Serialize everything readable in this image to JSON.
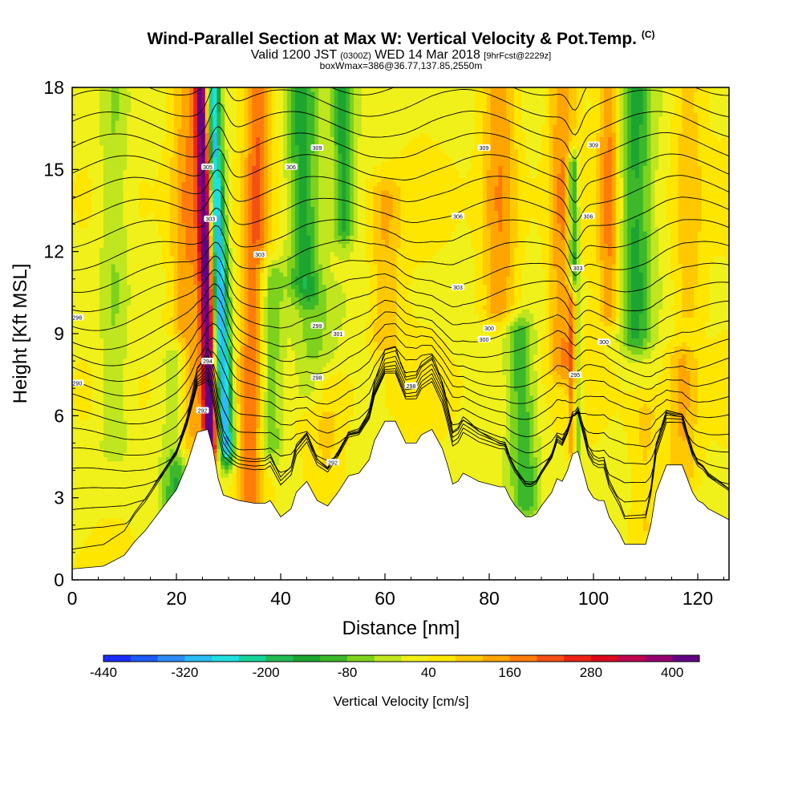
{
  "header": {
    "title": "Wind-Parallel Section at Max W: Vertical Velocity & Pot.Temp.",
    "copyright": "(C)",
    "valid_prefix": "Valid 1200 JST",
    "valid_zulu": "(0300Z)",
    "valid_date": "WED 14 Mar 2018",
    "forecast": "[9hrFcst@2229z]",
    "box_info": "boxWmax=386@36.77,137.85,2550m"
  },
  "chart_data": {
    "type": "heatmap",
    "xlabel": "Distance [nm]",
    "ylabel": "Height [Kft MSL]",
    "xlim": [
      0,
      126
    ],
    "ylim": [
      0,
      18
    ],
    "x_ticks": [
      0,
      20,
      40,
      60,
      80,
      100,
      120
    ],
    "y_ticks": [
      0,
      3,
      6,
      9,
      12,
      15,
      18
    ],
    "colorbar": {
      "label": "Vertical Velocity [cm/s]",
      "min": -440,
      "max": 440,
      "step": 40,
      "tick_labels": [
        "-440",
        "-320",
        "-200",
        "-80",
        "40",
        "160",
        "280",
        "400"
      ],
      "colors": [
        "#1a2dff",
        "#1e5af5",
        "#2d8cf5",
        "#2bbcf5",
        "#1fe0e0",
        "#18d49a",
        "#22bb55",
        "#1da531",
        "#3cb82a",
        "#7dd21e",
        "#bfe61e",
        "#f0f01a",
        "#ffe600",
        "#ffc800",
        "#ffa500",
        "#ff7c0a",
        "#f55014",
        "#ed2414",
        "#dc0a1e",
        "#be0550",
        "#96006e",
        "#640082"
      ]
    },
    "terrain": [
      [
        0,
        0.4
      ],
      [
        6,
        0.5
      ],
      [
        10,
        0.9
      ],
      [
        12,
        1.4
      ],
      [
        14,
        1.8
      ],
      [
        16,
        2.3
      ],
      [
        18,
        2.8
      ],
      [
        20,
        3.3
      ],
      [
        22,
        4.2
      ],
      [
        23,
        4.8
      ],
      [
        24,
        5.4
      ],
      [
        26,
        5.5
      ],
      [
        27,
        4.8
      ],
      [
        28,
        3.7
      ],
      [
        29,
        3.1
      ],
      [
        32,
        2.9
      ],
      [
        35,
        2.8
      ],
      [
        37,
        2.8
      ],
      [
        38,
        2.9
      ],
      [
        40,
        2.3
      ],
      [
        42,
        2.6
      ],
      [
        43,
        3.2
      ],
      [
        45,
        3.6
      ],
      [
        47,
        2.9
      ],
      [
        49,
        2.7
      ],
      [
        51,
        3.2
      ],
      [
        53,
        3.8
      ],
      [
        55,
        3.9
      ],
      [
        57,
        4.4
      ],
      [
        58,
        5.1
      ],
      [
        60,
        5.8
      ],
      [
        62,
        5.8
      ],
      [
        63,
        5.4
      ],
      [
        64,
        5.0
      ],
      [
        66,
        5.0
      ],
      [
        67,
        5.3
      ],
      [
        69,
        5.5
      ],
      [
        71,
        4.8
      ],
      [
        72,
        4.2
      ],
      [
        73,
        3.5
      ],
      [
        74,
        3.6
      ],
      [
        75,
        3.9
      ],
      [
        77,
        3.7
      ],
      [
        78,
        3.6
      ],
      [
        80,
        3.5
      ],
      [
        82,
        3.4
      ],
      [
        83,
        3.4
      ],
      [
        84,
        3.0
      ],
      [
        85,
        2.7
      ],
      [
        86,
        2.5
      ],
      [
        87,
        2.3
      ],
      [
        88,
        2.3
      ],
      [
        89,
        2.4
      ],
      [
        90,
        2.7
      ],
      [
        92,
        3.2
      ],
      [
        93,
        3.7
      ],
      [
        94,
        3.6
      ],
      [
        95,
        4.0
      ],
      [
        96,
        4.6
      ],
      [
        97,
        4.7
      ],
      [
        98,
        4.0
      ],
      [
        99,
        3.3
      ],
      [
        100,
        3.0
      ],
      [
        101,
        2.9
      ],
      [
        102,
        2.9
      ],
      [
        103,
        2.3
      ],
      [
        104,
        2.0
      ],
      [
        105,
        1.7
      ],
      [
        106,
        1.3
      ],
      [
        108,
        1.3
      ],
      [
        110,
        1.3
      ],
      [
        111,
        2.0
      ],
      [
        112,
        3.2
      ],
      [
        113,
        3.7
      ],
      [
        114,
        4.2
      ],
      [
        117,
        4.2
      ],
      [
        118,
        3.7
      ],
      [
        119,
        3.2
      ],
      [
        120,
        2.9
      ],
      [
        121,
        2.8
      ],
      [
        122,
        2.6
      ],
      [
        124,
        2.4
      ],
      [
        126,
        2.2
      ]
    ],
    "vv_features": [
      {
        "x": 26.5,
        "slope": -0.12,
        "y0": 5,
        "y1": 18,
        "w": 1.3,
        "amp": 420
      },
      {
        "x": 29.5,
        "slope": -0.22,
        "y0": 5,
        "y1": 18,
        "w": 1.6,
        "amp": -360
      },
      {
        "x": 22,
        "slope": 0.05,
        "y0": 5,
        "y1": 18,
        "w": 3.5,
        "amp": 150
      },
      {
        "x": 20,
        "slope": 0.0,
        "y0": 2,
        "y1": 8,
        "w": 2.5,
        "amp": -140
      },
      {
        "x": 34,
        "slope": 0.12,
        "y0": 3,
        "y1": 18,
        "w": 2.5,
        "amp": 160
      },
      {
        "x": 38,
        "slope": 0.0,
        "y0": 5,
        "y1": 11,
        "w": 2.5,
        "amp": -120
      },
      {
        "x": 44.5,
        "slope": -0.09,
        "y0": 11,
        "y1": 18,
        "w": 3,
        "amp": -170
      },
      {
        "x": 52,
        "slope": 0.0,
        "y0": 13,
        "y1": 18,
        "w": 2,
        "amp": -150
      },
      {
        "x": 46,
        "slope": 0.0,
        "y0": 7,
        "y1": 10,
        "w": 4,
        "amp": -80
      },
      {
        "x": 49,
        "slope": 0.0,
        "y0": 3,
        "y1": 7,
        "w": 4,
        "amp": 70
      },
      {
        "x": 60,
        "slope": 0.0,
        "y0": 9,
        "y1": 14,
        "w": 3,
        "amp": 90
      },
      {
        "x": 82,
        "slope": 0.0,
        "y0": 10,
        "y1": 18,
        "w": 3.5,
        "amp": 140
      },
      {
        "x": 87,
        "slope": -0.2,
        "y0": 3,
        "y1": 9,
        "w": 2.5,
        "amp": -130
      },
      {
        "x": 96.5,
        "slope": -0.04,
        "y0": 4,
        "y1": 15,
        "w": 1.0,
        "amp": -220
      },
      {
        "x": 96,
        "slope": 0.0,
        "y0": 5,
        "y1": 10,
        "w": 0.8,
        "amp": 280
      },
      {
        "x": 94,
        "slope": 0.0,
        "y0": 8,
        "y1": 18,
        "w": 2.5,
        "amp": 120
      },
      {
        "x": 108,
        "slope": 0.0,
        "y0": 9,
        "y1": 18,
        "w": 3,
        "amp": -150
      },
      {
        "x": 103,
        "slope": 0.0,
        "y0": 10,
        "y1": 18,
        "w": 2,
        "amp": 140
      },
      {
        "x": 118,
        "slope": 0.0,
        "y0": 10,
        "y1": 18,
        "w": 3,
        "amp": 80
      },
      {
        "x": 8,
        "slope": 0.0,
        "y0": 5,
        "y1": 18,
        "w": 3,
        "amp": -80
      },
      {
        "x": 117,
        "slope": 0.0,
        "y0": 4,
        "y1": 8,
        "w": 3,
        "amp": 100
      },
      {
        "x": 110,
        "slope": 0.0,
        "y0": 2,
        "y1": 6,
        "w": 3,
        "amp": 70
      }
    ],
    "theta_isentropes_base_kft": [
      1.0,
      1.7,
      2.4,
      3.1,
      3.8,
      4.5,
      5.2,
      5.9,
      6.5,
      7.1,
      7.7,
      8.3,
      8.9,
      9.6,
      10.3,
      11.0,
      11.8,
      12.6,
      13.4,
      14.2,
      15.0,
      15.8,
      16.6,
      17.4,
      18.2,
      19.0,
      19.8
    ],
    "theta_labels": [
      {
        "text": "290",
        "x": 1,
        "y": 7.2
      },
      {
        "text": "296",
        "x": 1,
        "y": 9.6
      },
      {
        "text": "292",
        "x": 25,
        "y": 6.2
      },
      {
        "text": "294",
        "x": 26,
        "y": 8.0
      },
      {
        "text": "305",
        "x": 26,
        "y": 15.1
      },
      {
        "text": "303",
        "x": 26.5,
        "y": 13.2
      },
      {
        "text": "303",
        "x": 36,
        "y": 11.9
      },
      {
        "text": "306",
        "x": 42,
        "y": 15.1
      },
      {
        "text": "309",
        "x": 47,
        "y": 15.8
      },
      {
        "text": "301",
        "x": 51,
        "y": 9.0
      },
      {
        "text": "299",
        "x": 47,
        "y": 9.3
      },
      {
        "text": "298",
        "x": 47,
        "y": 7.4
      },
      {
        "text": "292",
        "x": 50,
        "y": 4.3
      },
      {
        "text": "298",
        "x": 65,
        "y": 7.1
      },
      {
        "text": "303",
        "x": 74,
        "y": 10.7
      },
      {
        "text": "306",
        "x": 74,
        "y": 13.3
      },
      {
        "text": "309",
        "x": 79,
        "y": 15.8
      },
      {
        "text": "300",
        "x": 79,
        "y": 8.8
      },
      {
        "text": "300",
        "x": 80,
        "y": 9.2
      },
      {
        "text": "309",
        "x": 100,
        "y": 15.9
      },
      {
        "text": "306",
        "x": 99,
        "y": 13.3
      },
      {
        "text": "303",
        "x": 97,
        "y": 11.4
      },
      {
        "text": "300",
        "x": 102,
        "y": 8.7
      },
      {
        "text": "295",
        "x": 96.5,
        "y": 7.5
      }
    ]
  }
}
